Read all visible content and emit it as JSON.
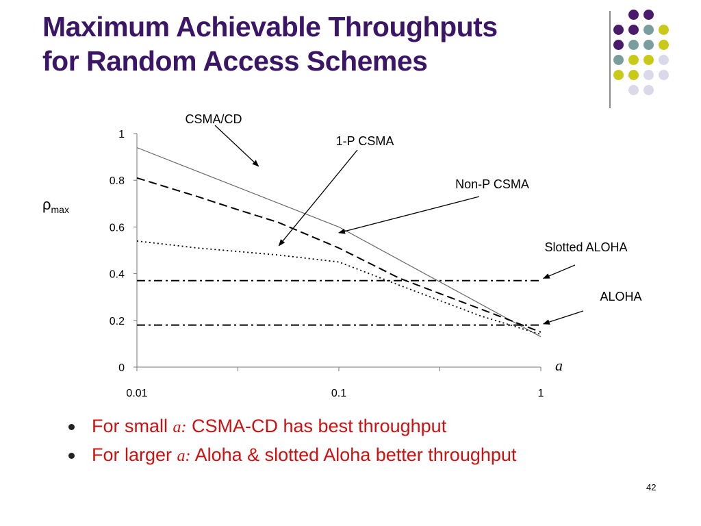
{
  "slide": {
    "title_line1": "Maximum Achievable Throughputs",
    "title_line2": "for Random Access Schemes",
    "page_number": "42",
    "colors": {
      "title": "#3b1566",
      "bullet_text": "#cc1111",
      "dot_palette": [
        "#4a1a6b",
        "#7a9e9e",
        "#c9c91a",
        "#d9d9ea"
      ]
    },
    "bullets": [
      {
        "prefix": "For small ",
        "var": "a",
        "colon": ":",
        "suffix": "CSMA-CD has best throughput"
      },
      {
        "prefix": "For larger ",
        "var": "a",
        "colon": ":",
        "suffix": "Aloha & slotted Aloha better throughput"
      }
    ]
  },
  "chart_data": {
    "type": "line",
    "xscale": "log",
    "xlim": [
      0.01,
      1
    ],
    "ylim": [
      0,
      1
    ],
    "xticks": [
      "0.01",
      "0.1",
      "1"
    ],
    "yticks": [
      "0",
      "0.2",
      "0.4",
      "0.6",
      "0.8",
      "1"
    ],
    "ylabel_main": "ρ",
    "ylabel_sub": "max",
    "xlabel": "a",
    "grid": false,
    "legend": "none (inline annotations)",
    "series": [
      {
        "name": "CSMA/CD",
        "style": "solid",
        "x": [
          0.01,
          0.1,
          1
        ],
        "y": [
          0.94,
          0.6,
          0.13
        ]
      },
      {
        "name": "1-P CSMA",
        "style": "dotted",
        "x": [
          0.01,
          0.02,
          0.05,
          0.1,
          0.2,
          0.5,
          1
        ],
        "y": [
          0.54,
          0.51,
          0.48,
          0.45,
          0.35,
          0.22,
          0.14
        ]
      },
      {
        "name": "Non-P CSMA",
        "style": "dashed",
        "x": [
          0.01,
          0.02,
          0.03,
          0.05,
          0.1,
          0.2,
          0.5,
          1
        ],
        "y": [
          0.81,
          0.73,
          0.68,
          0.62,
          0.51,
          0.38,
          0.25,
          0.15
        ]
      },
      {
        "name": "Slotted ALOHA",
        "style": "dashdot",
        "x": [
          0.01,
          1
        ],
        "y": [
          0.37,
          0.37
        ]
      },
      {
        "name": "ALOHA",
        "style": "dashdot",
        "x": [
          0.01,
          1
        ],
        "y": [
          0.18,
          0.18
        ]
      }
    ],
    "annotations": [
      {
        "text": "CSMA/CD",
        "target_series": "CSMA/CD",
        "point": [
          0.04,
          0.86
        ]
      },
      {
        "text": "1-P CSMA",
        "target_series": "1-P CSMA",
        "point": [
          0.0505,
          0.52
        ]
      },
      {
        "text": "Non-P CSMA",
        "target_series": "Non-P CSMA",
        "point": [
          0.1,
          0.575
        ]
      },
      {
        "text": "Slotted ALOHA",
        "target_series": "Slotted ALOHA",
        "point": [
          1.03,
          0.38
        ]
      },
      {
        "text": "ALOHA",
        "target_series": "ALOHA",
        "point": [
          1.03,
          0.185
        ]
      }
    ]
  }
}
